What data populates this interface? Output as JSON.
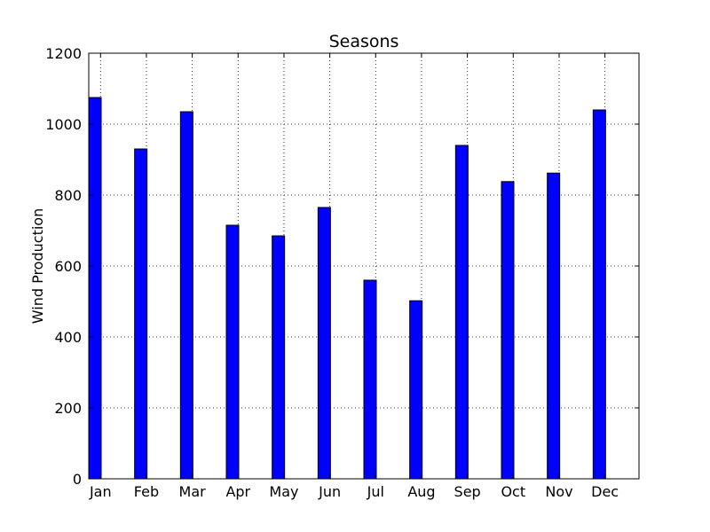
{
  "chart_data": {
    "type": "bar",
    "title": "Seasons",
    "xlabel": "",
    "ylabel": "Wind Production",
    "categories": [
      "Jan",
      "Feb",
      "Mar",
      "Apr",
      "May",
      "Jun",
      "Jul",
      "Aug",
      "Sep",
      "Oct",
      "Nov",
      "Dec"
    ],
    "values": [
      1075,
      930,
      1035,
      715,
      685,
      765,
      560,
      502,
      940,
      838,
      862,
      1040
    ],
    "ylim": [
      0,
      1200
    ],
    "yticks": [
      0,
      200,
      400,
      600,
      800,
      1000,
      1200
    ],
    "grid": true,
    "colors": {
      "bar": "#0000ff",
      "edge": "#000000",
      "grid": "#000000"
    }
  }
}
